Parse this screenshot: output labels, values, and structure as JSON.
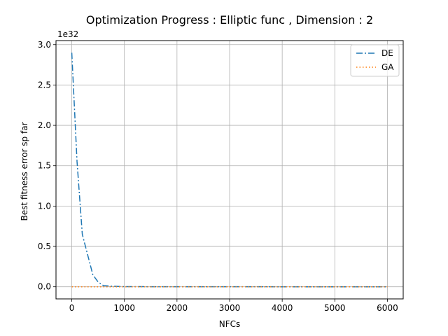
{
  "chart_data": {
    "type": "line",
    "title": "Optimization Progress : Elliptic func , Dimension : 2",
    "xlabel": "NFCs",
    "ylabel": "Best fitness error sp far",
    "y_scale_label": "1e32",
    "xlim": [
      -300,
      6300
    ],
    "ylim": [
      -0.15,
      3.05
    ],
    "x_ticks": [
      0,
      1000,
      2000,
      3000,
      4000,
      5000,
      6000
    ],
    "x_tick_labels": [
      "0",
      "1000",
      "2000",
      "3000",
      "4000",
      "5000",
      "6000"
    ],
    "y_ticks": [
      0.0,
      0.5,
      1.0,
      1.5,
      2.0,
      2.5,
      3.0
    ],
    "y_tick_labels": [
      "0.0",
      "0.5",
      "1.0",
      "1.5",
      "2.0",
      "2.5",
      "3.0"
    ],
    "grid": true,
    "legend_position": "top-right",
    "series": [
      {
        "name": "DE",
        "color": "#1f77b4",
        "style": "dashdot",
        "x": [
          0,
          100,
          200,
          300,
          400,
          500,
          600,
          700,
          800,
          900,
          1000,
          1500,
          2000,
          3000,
          4000,
          5000,
          6000
        ],
        "y": [
          2.9,
          1.55,
          0.65,
          0.4,
          0.15,
          0.06,
          0.015,
          0.01,
          0.007,
          0.004,
          0.002,
          0.001,
          0.0005,
          0.0002,
          0.0001,
          0.0,
          0.0
        ]
      },
      {
        "name": "GA",
        "color": "#ff7f0e",
        "style": "dotted",
        "x": [
          0,
          1000,
          2000,
          3000,
          4000,
          5000,
          6000
        ],
        "y": [
          0.0,
          0.0,
          0.0,
          0.0,
          0.0,
          0.0,
          0.0
        ]
      }
    ]
  }
}
